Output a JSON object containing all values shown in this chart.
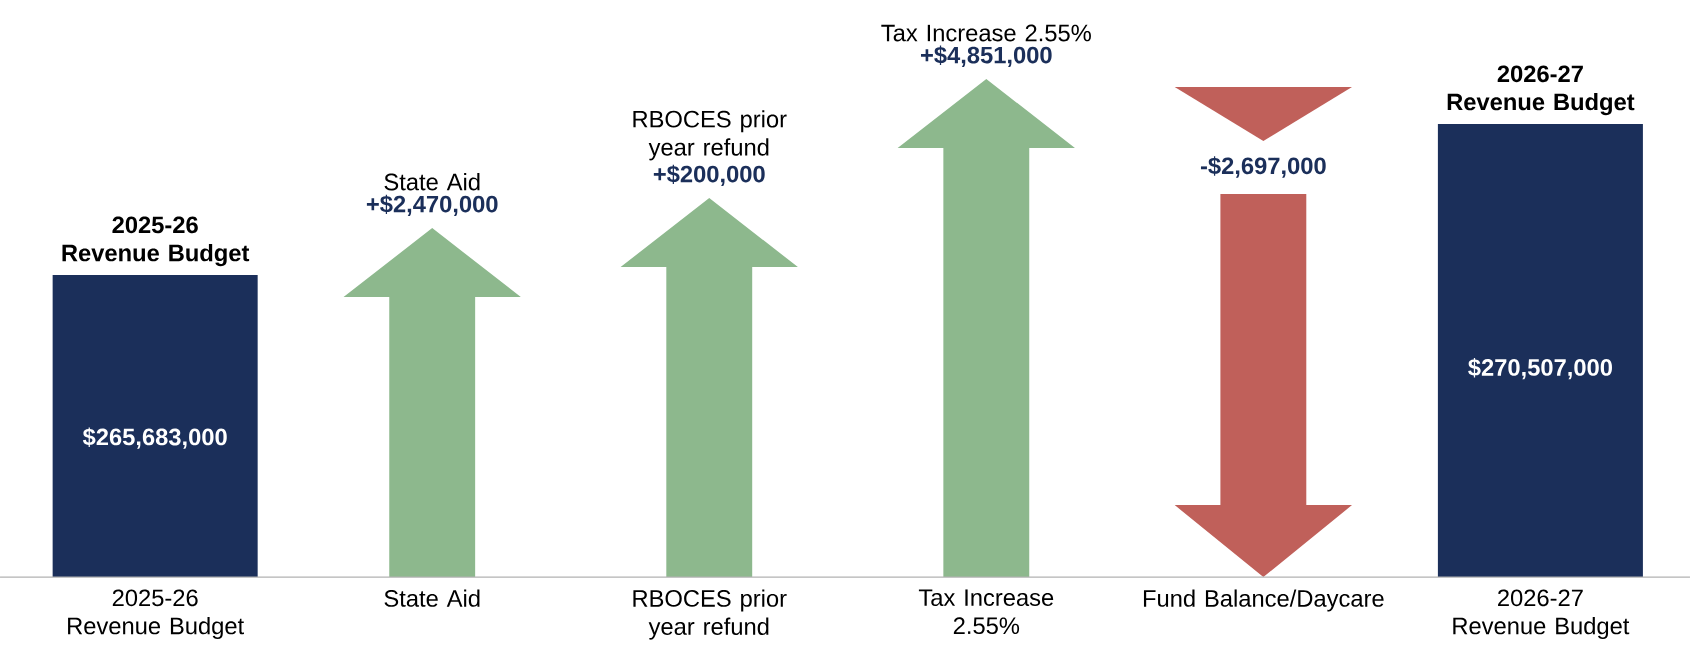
{
  "chart_data": {
    "type": "other",
    "categories": [
      "2025-26 Revenue Budget",
      "State Aid",
      "RBOCES prior year refund",
      "Tax Increase 2.55%",
      "Fund Balance/Daycare",
      "2026-27 Revenue Budget"
    ],
    "values": [
      265683000,
      2470000,
      200000,
      4851000,
      -2697000,
      270507000
    ],
    "value_labels": [
      "$265,683,000",
      "+$2,470,000",
      "+$200,000",
      "+$4,851,000",
      "-$2,697,000",
      "$270,507,000"
    ],
    "colors": [
      "#1b2f5a",
      "#8db88d",
      "#8db88d",
      "#8db88d",
      "#c0605a",
      "#1b2f5a"
    ],
    "annotations": [
      "2025-26 Revenue Budget",
      "State Aid",
      "RBOCES prior year refund",
      "Tax Increase 2.55%",
      "2026-27 Revenue Budget"
    ]
  }
}
